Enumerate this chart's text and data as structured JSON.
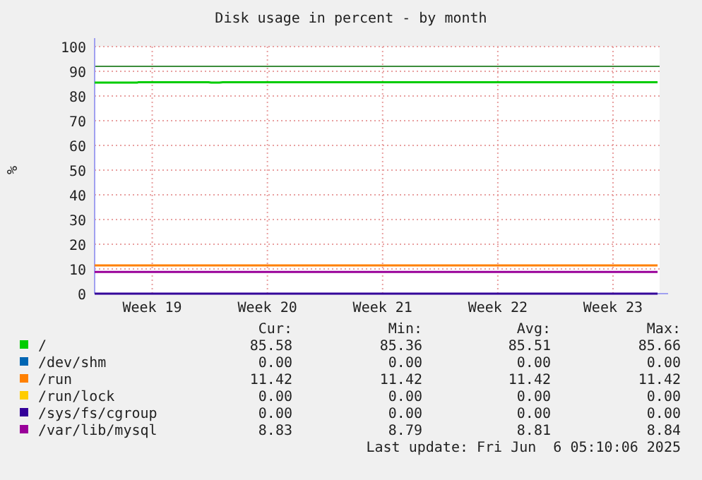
{
  "chart_data": {
    "type": "line",
    "title": "Disk usage in percent - by month",
    "ylabel": "%",
    "xlim": [
      "2025-05-03T00:00",
      "2025-06-06T08:00"
    ],
    "xticks": [
      {
        "value": "2025-05-06T12:00",
        "label": "Week 19"
      },
      {
        "value": "2025-05-13T12:00",
        "label": "Week 20"
      },
      {
        "value": "2025-05-20T12:00",
        "label": "Week 21"
      },
      {
        "value": "2025-05-27T12:00",
        "label": "Week 22"
      },
      {
        "value": "2025-06-03T12:00",
        "label": "Week 23"
      }
    ],
    "ylim": [
      0,
      100
    ],
    "yticks": [
      0,
      10,
      20,
      30,
      40,
      50,
      60,
      70,
      80,
      90,
      100
    ],
    "grid": true,
    "legend": "bottom",
    "marker": "none",
    "line_style": "solid",
    "ref_lines": [
      {
        "axis": "y",
        "value": 92,
        "color": "#3c8c3c"
      }
    ],
    "series": [
      {
        "name": "/",
        "color": "#00cc00",
        "x": [
          "2025-05-03T00:00",
          "2025-05-05T14:00",
          "2025-05-05T16:00",
          "2025-05-09T22:00",
          "2025-05-10T02:00",
          "2025-05-10T14:00",
          "2025-05-10T19:00",
          "2025-06-06T05:00"
        ],
        "values": [
          85.4,
          85.4,
          85.6,
          85.6,
          85.4,
          85.4,
          85.6,
          85.6
        ]
      },
      {
        "name": "/dev/shm",
        "color": "#0066b3"
      },
      {
        "name": "/run",
        "color": "#ff8000",
        "x": [
          "2025-05-03T00:00",
          "2025-06-06T05:00"
        ],
        "values": [
          11.4,
          11.4
        ]
      },
      {
        "name": "/run/lock",
        "color": "#ffcc00"
      },
      {
        "name": "/sys/fs/cgroup",
        "color": "#330099",
        "x": [
          "2025-05-03T00:00",
          "2025-06-06T05:00"
        ],
        "values": [
          0,
          0
        ]
      },
      {
        "name": "/var/lib/mysql",
        "color": "#990099",
        "x": [
          "2025-05-03T00:00",
          "2025-06-06T05:00"
        ],
        "values": [
          8.8,
          8.8
        ]
      }
    ],
    "annotations": [
      "Cur:",
      "Min:",
      "Avg:",
      "Max:",
      "85.58",
      "85.36",
      "85.51",
      "85.66",
      "0.00",
      "0.00",
      "0.00",
      "0.00",
      "11.42",
      "11.42",
      "11.42",
      "11.42",
      "0.00",
      "0.00",
      "0.00",
      "0.00",
      "0.00",
      "0.00",
      "0.00",
      "0.00",
      "8.83",
      "8.79",
      "8.81",
      "8.84",
      "Last update: Fri Jun  6 05:10:06 2025"
    ]
  }
}
